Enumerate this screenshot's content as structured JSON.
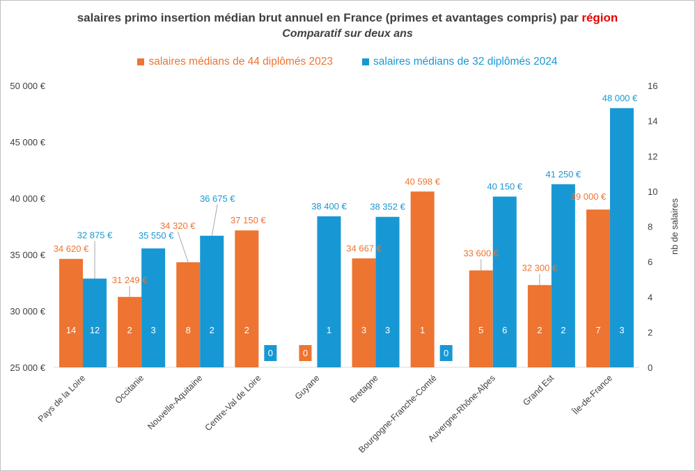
{
  "title": {
    "prefix": "salaires primo insertion médian brut annuel en France (primes et avantages compris) par ",
    "highlight": "région"
  },
  "subtitle": "Comparatif sur deux ans",
  "colors": {
    "series2023": "#ed7431",
    "series2024": "#1798d4",
    "highlight": "#e60000",
    "axis_text": "#404040"
  },
  "chart_data": {
    "type": "bar",
    "categories": [
      "Pays de la Loire",
      "Occitanie",
      "Nouvelle-Aquitaine",
      "Centre-Val de Loire",
      "Guyane",
      "Bretagne",
      "Bourgogne-Franche-Comté",
      "Auvergne-Rhône-Alpes",
      "Grand Est",
      "Île-de-France"
    ],
    "series": [
      {
        "name": "salaires médians de 44 diplômés 2023",
        "values": [
          34620,
          31249,
          34320,
          37150,
          null,
          34667,
          40598,
          33600,
          32300,
          39000
        ],
        "value_labels": [
          "34 620 €",
          "31 249 €",
          "34 320 €",
          "37 150 €",
          "",
          "34 667 €",
          "40 598 €",
          "33 600 €",
          "32 300 €",
          "39 000 €"
        ],
        "counts": [
          14,
          2,
          8,
          2,
          0,
          3,
          1,
          5,
          2,
          7
        ]
      },
      {
        "name": "salaires médians de 32 diplômés 2024",
        "values": [
          32875,
          35550,
          36675,
          null,
          38400,
          38352,
          null,
          40150,
          41250,
          48000
        ],
        "value_labels": [
          "32 875 €",
          "35 550 €",
          "36 675 €",
          "",
          "38 400 €",
          "38 352 €",
          "",
          "40 150 €",
          "41 250 €",
          "48 000 €"
        ],
        "counts": [
          12,
          3,
          2,
          0,
          1,
          3,
          0,
          6,
          2,
          3
        ]
      }
    ],
    "ylim": [
      25000,
      50000
    ],
    "yticks": [
      25000,
      30000,
      35000,
      40000,
      45000,
      50000
    ],
    "ytick_labels": [
      "25 000 €",
      "30 000 €",
      "35 000 €",
      "40 000 €",
      "45 000 €",
      "50 000 €"
    ],
    "y2lim": [
      0,
      16
    ],
    "y2ticks": [
      0,
      2,
      4,
      6,
      8,
      10,
      12,
      14,
      16
    ],
    "y2label": "nb de salaires",
    "grid": false,
    "legend_position": "top"
  }
}
